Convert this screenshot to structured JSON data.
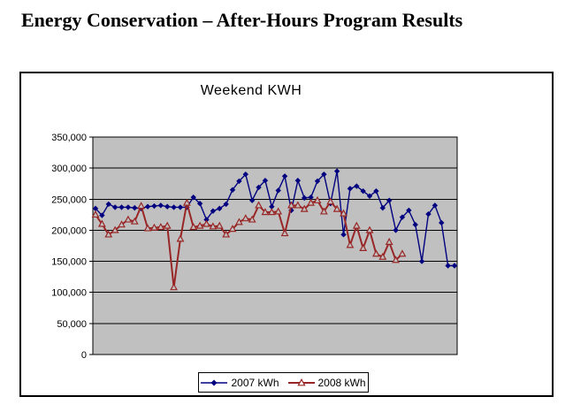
{
  "page": {
    "title": "Energy Conservation – After-Hours Program Results"
  },
  "chart_data": {
    "type": "line",
    "title": "Weekend KWH",
    "plot_background": "#C0C0C0",
    "grid": true,
    "gridline_color": "#000000",
    "gridline_step": 50000,
    "ylim": [
      0,
      350000
    ],
    "y_tick_labels": [
      "350,000",
      "300,000",
      "250,000",
      "200,000",
      "150,000",
      "100,000",
      "50,000",
      "0"
    ],
    "x_axis_labels_visible": false,
    "legend_position": "bottom-center",
    "series": [
      {
        "name": "2007 kWh",
        "color": "#000080",
        "marker": "diamond-solid",
        "line_width": 1.4,
        "values": [
          235000,
          224000,
          242000,
          237000,
          237000,
          237000,
          236000,
          235000,
          238000,
          239000,
          240000,
          238000,
          237000,
          237000,
          237000,
          253000,
          243000,
          217000,
          231000,
          235000,
          242000,
          265000,
          279000,
          290000,
          248000,
          269000,
          280000,
          238000,
          264000,
          287000,
          232000,
          280000,
          252000,
          253000,
          279000,
          290000,
          243000,
          295000,
          193000,
          267000,
          271000,
          263000,
          255000,
          263000,
          236000,
          248000,
          200000,
          221000,
          232000,
          209000,
          150000,
          226000,
          240000,
          212000,
          143000,
          143000
        ]
      },
      {
        "name": "2008 kWh",
        "color": "#992626",
        "marker": "triangle-open",
        "line_width": 2,
        "values": [
          225000,
          210000,
          193000,
          200000,
          209000,
          217000,
          214000,
          239000,
          203000,
          204000,
          205000,
          207000,
          108000,
          186000,
          244000,
          205000,
          207000,
          210000,
          206000,
          207000,
          193000,
          202000,
          213000,
          219000,
          217000,
          240000,
          229000,
          229000,
          230000,
          195000,
          240000,
          240000,
          234000,
          244000,
          248000,
          230000,
          246000,
          234000,
          227000,
          176000,
          207000,
          171000,
          200000,
          162000,
          157000,
          181000,
          152000,
          162000
        ]
      }
    ]
  }
}
